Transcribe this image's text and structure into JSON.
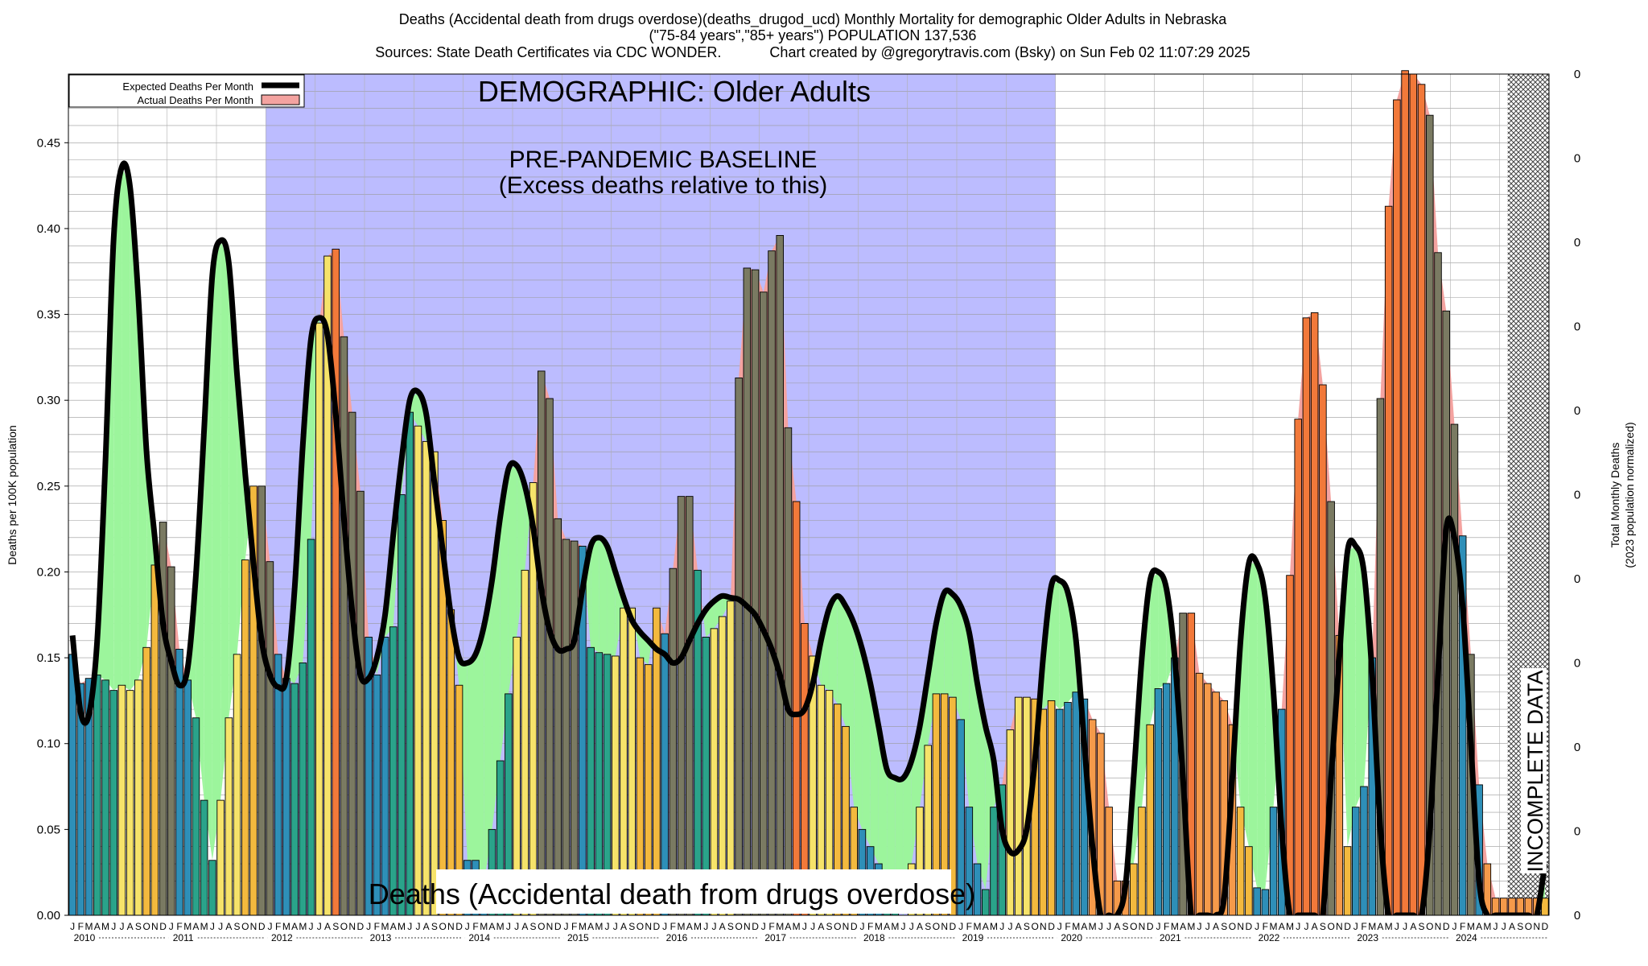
{
  "chart_data": {
    "type": "bar",
    "title_lines": [
      "Deaths (Accidental death from drugs overdose)(deaths_drugod_ucd) Monthly Mortality for demographic Older Adults in Nebraska",
      "(\"75-84 years\",\"85+ years\") POPULATION 137,536",
      "Sources: State Death Certificates via CDC WONDER.            Chart created by @gregorytravis.com (Bsky) on Sun Feb 02 11:07:29 2025"
    ],
    "ylabel": "Deaths per 100K population",
    "ylabel_right_lines": [
      "Total Monthly Deaths",
      "(2023 population normalized)"
    ],
    "ylim": [
      0,
      0.49
    ],
    "yticks": [
      "0.00",
      "0.05",
      "0.10",
      "0.15",
      "0.20",
      "0.25",
      "0.30",
      "0.35",
      "0.40",
      "0.45"
    ],
    "right_ticks": [
      "0",
      "0",
      "0",
      "0",
      "0",
      "0",
      "0",
      "0",
      "0",
      "0",
      "0"
    ],
    "month_letters": [
      "J",
      "F",
      "M",
      "A",
      "M",
      "J",
      "J",
      "A",
      "S",
      "O",
      "N",
      "D"
    ],
    "years": [
      "2010",
      "2011",
      "2012",
      "2013",
      "2014",
      "2015",
      "2016",
      "2017",
      "2018",
      "2019",
      "2020",
      "2021",
      "2022",
      "2023",
      "2024"
    ],
    "legend": [
      {
        "label": "Expected Deaths Per Month",
        "color": "#000000"
      },
      {
        "label": "Actual Deaths Per Month",
        "color": "#f4a3a0"
      }
    ],
    "annotations": {
      "demographic": "DEMOGRAPHIC: Older Adults",
      "baseline_line1": "PRE-PANDEMIC BASELINE",
      "baseline_line2": "(Excess deaths relative to this)",
      "bottom_label": "Deaths (Accidental death from drugs overdose)",
      "incomplete": "INCOMPLETE DATA"
    },
    "baseline_period": {
      "start": "2012-01",
      "end": "2019-12"
    },
    "incomplete_period": {
      "start": "2024-07",
      "end": "2024-12"
    },
    "actual": [
      0.152,
      0.135,
      0.138,
      0.14,
      0.137,
      0.131,
      0.134,
      0.131,
      0.137,
      0.156,
      0.204,
      0.229,
      0.203,
      0.155,
      0.137,
      0.115,
      0.067,
      0.032,
      0.067,
      0.115,
      0.152,
      0.207,
      0.25,
      0.25,
      0.206,
      0.152,
      0.138,
      0.135,
      0.147,
      0.219,
      0.345,
      0.384,
      0.388,
      0.337,
      0.293,
      0.247,
      0.162,
      0.14,
      0.162,
      0.168,
      0.245,
      0.293,
      0.285,
      0.276,
      0.27,
      0.23,
      0.178,
      0.134,
      0.032,
      0.032,
      0.018,
      0.05,
      0.09,
      0.129,
      0.162,
      0.201,
      0.252,
      0.317,
      0.301,
      0.231,
      0.219,
      0.218,
      0.215,
      0.156,
      0.153,
      0.152,
      0.151,
      0.179,
      0.179,
      0.15,
      0.146,
      0.179,
      0.164,
      0.202,
      0.244,
      0.244,
      0.201,
      0.162,
      0.167,
      0.174,
      0.183,
      0.313,
      0.377,
      0.376,
      0.363,
      0.387,
      0.396,
      0.284,
      0.241,
      0.17,
      0.151,
      0.134,
      0.131,
      0.123,
      0.11,
      0.063,
      0.05,
      0.04,
      0.03,
      0.02,
      0.01,
      0.0,
      0.03,
      0.063,
      0.099,
      0.129,
      0.129,
      0.127,
      0.114,
      0.063,
      0.03,
      0.015,
      0.063,
      0.076,
      0.108,
      0.127,
      0.127,
      0.126,
      0.12,
      0.125,
      0.12,
      0.124,
      0.13,
      0.126,
      0.114,
      0.106,
      0.063,
      0.02,
      0.02,
      0.03,
      0.063,
      0.111,
      0.132,
      0.135,
      0.15,
      0.176,
      0.176,
      0.141,
      0.135,
      0.13,
      0.125,
      0.111,
      0.063,
      0.04,
      0.016,
      0.015,
      0.063,
      0.12,
      0.198,
      0.289,
      0.348,
      0.351,
      0.309,
      0.241,
      0.163,
      0.04,
      0.063,
      0.075,
      0.15,
      0.301,
      0.413,
      0.475,
      0.492,
      0.49,
      0.484,
      0.466,
      0.386,
      0.352,
      0.286,
      0.221,
      0.152,
      0.076,
      0.03,
      0.01,
      0.01,
      0.01,
      0.01,
      0.01,
      0.01,
      0.01
    ],
    "expected": [
      0.163,
      0.118,
      0.117,
      0.16,
      0.264,
      0.394,
      0.436,
      0.424,
      0.36,
      0.27,
      0.22,
      0.17,
      0.148,
      0.134,
      0.144,
      0.198,
      0.283,
      0.373,
      0.393,
      0.38,
      0.315,
      0.257,
      0.205,
      0.16,
      0.14,
      0.133,
      0.138,
      0.19,
      0.274,
      0.336,
      0.348,
      0.338,
      0.292,
      0.231,
      0.177,
      0.14,
      0.138,
      0.15,
      0.175,
      0.222,
      0.265,
      0.3,
      0.305,
      0.292,
      0.252,
      0.213,
      0.175,
      0.15,
      0.147,
      0.152,
      0.168,
      0.195,
      0.232,
      0.26,
      0.262,
      0.25,
      0.226,
      0.19,
      0.166,
      0.155,
      0.155,
      0.16,
      0.19,
      0.215,
      0.22,
      0.215,
      0.2,
      0.185,
      0.172,
      0.165,
      0.16,
      0.155,
      0.152,
      0.147,
      0.15,
      0.16,
      0.17,
      0.178,
      0.183,
      0.186,
      0.185,
      0.184,
      0.18,
      0.175,
      0.166,
      0.155,
      0.14,
      0.12,
      0.117,
      0.12,
      0.135,
      0.16,
      0.179,
      0.186,
      0.18,
      0.17,
      0.155,
      0.135,
      0.11,
      0.085,
      0.08,
      0.08,
      0.09,
      0.11,
      0.14,
      0.17,
      0.188,
      0.187,
      0.18,
      0.165,
      0.135,
      0.11,
      0.09,
      0.05,
      0.037,
      0.038,
      0.05,
      0.09,
      0.15,
      0.192,
      0.195,
      0.188,
      0.16,
      0.1,
      0.04,
      0.0,
      0.0,
      0.0,
      0.017,
      0.08,
      0.15,
      0.195,
      0.2,
      0.19,
      0.15,
      0.08,
      0.0,
      0.0,
      0.0,
      0.0,
      0.01,
      0.08,
      0.16,
      0.205,
      0.205,
      0.185,
      0.13,
      0.05,
      0.0,
      0.0,
      0.0,
      0.0,
      0.0,
      0.08,
      0.15,
      0.212,
      0.215,
      0.2,
      0.14,
      0.05,
      0.0,
      0.0,
      0.0,
      0.0,
      0.0,
      0.05,
      0.14,
      0.225,
      0.22,
      0.18,
      0.1,
      0.02,
      0.0,
      0.0,
      0.0,
      0.0,
      0.0,
      0.0,
      0.0,
      0.03
    ]
  }
}
